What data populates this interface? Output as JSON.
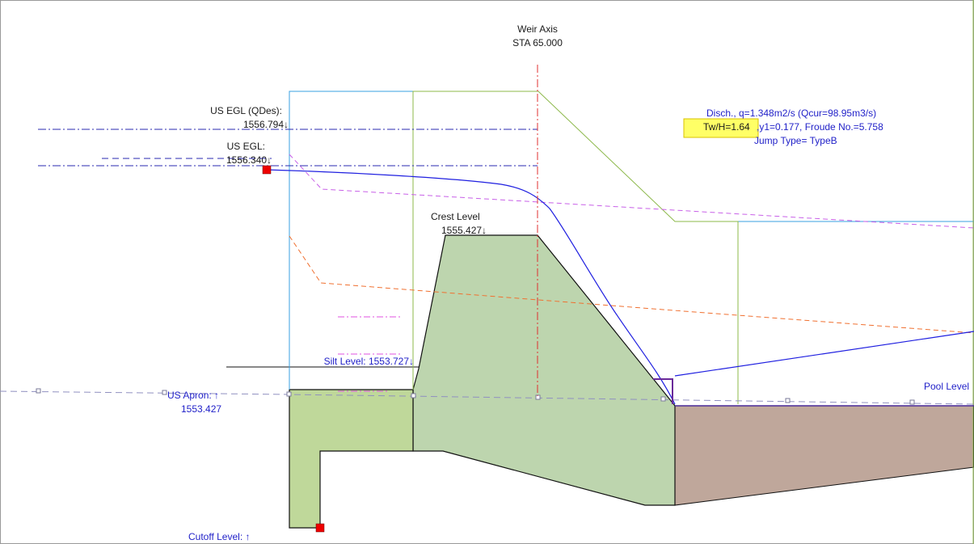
{
  "weir_axis": {
    "label": "Weir Axis",
    "station": "STA 65.000"
  },
  "levels": {
    "us_egl_qdes_label": "US EGL (QDes):",
    "us_egl_qdes_value": "1556.794↓",
    "us_egl_label": "US EGL:",
    "us_egl_value": "1556.340↓",
    "crest_label": "Crest Level",
    "crest_value": "1555.427↓",
    "silt_label": "Silt Level: 1553.727↓",
    "us_apron_label": "US Apron: ↑",
    "us_apron_value": "1553.427",
    "pool_label": "Pool Level",
    "cutoff_label": "Cutoff Level: ↑"
  },
  "hydraulics": {
    "discharge_line": "Disch., q=1.348m2/s (Qcur=98.95m3/s)",
    "twh_highlight": "Tw/H=1.64",
    "froude_rest": ",y1=0.177, Froude No.=5.758",
    "jump_type": "Jump Type= TypeB"
  },
  "colors": {
    "weir_body": "#bdd5ae",
    "us_apron_body": "#bfd89a",
    "soil": "#bfa79b",
    "egl_line": "#2a2ab0",
    "water_surface": "#1f1fe0",
    "axis_line": "#e03030",
    "highlight": "#ffff66",
    "magenta_dash": "#c860e8",
    "orange_dash": "#f07030",
    "cyan_box": "#3aa0e0",
    "green_line": "#8cb84a"
  }
}
